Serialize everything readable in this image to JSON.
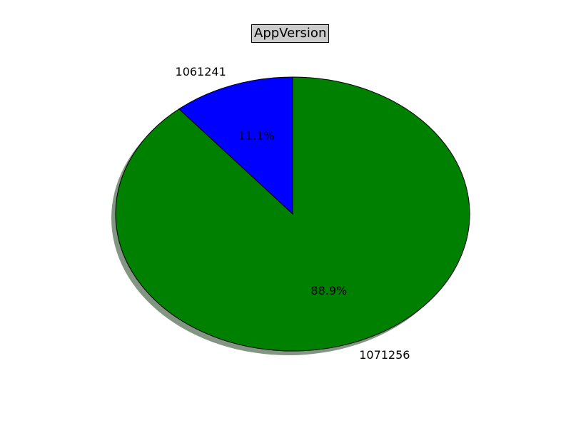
{
  "chart_data": {
    "type": "pie",
    "title": "AppVersion",
    "slices": [
      {
        "label": "1061241",
        "value": 11.1,
        "pct_label": "11.1%",
        "color": "#0000ff"
      },
      {
        "label": "1071256",
        "value": 88.9,
        "pct_label": "88.9%",
        "color": "#008000"
      }
    ],
    "start_angle_deg": 90,
    "direction": "counterclockwise",
    "shadow": true,
    "shadow_color": "#405c40",
    "edge_color": "#000000"
  }
}
